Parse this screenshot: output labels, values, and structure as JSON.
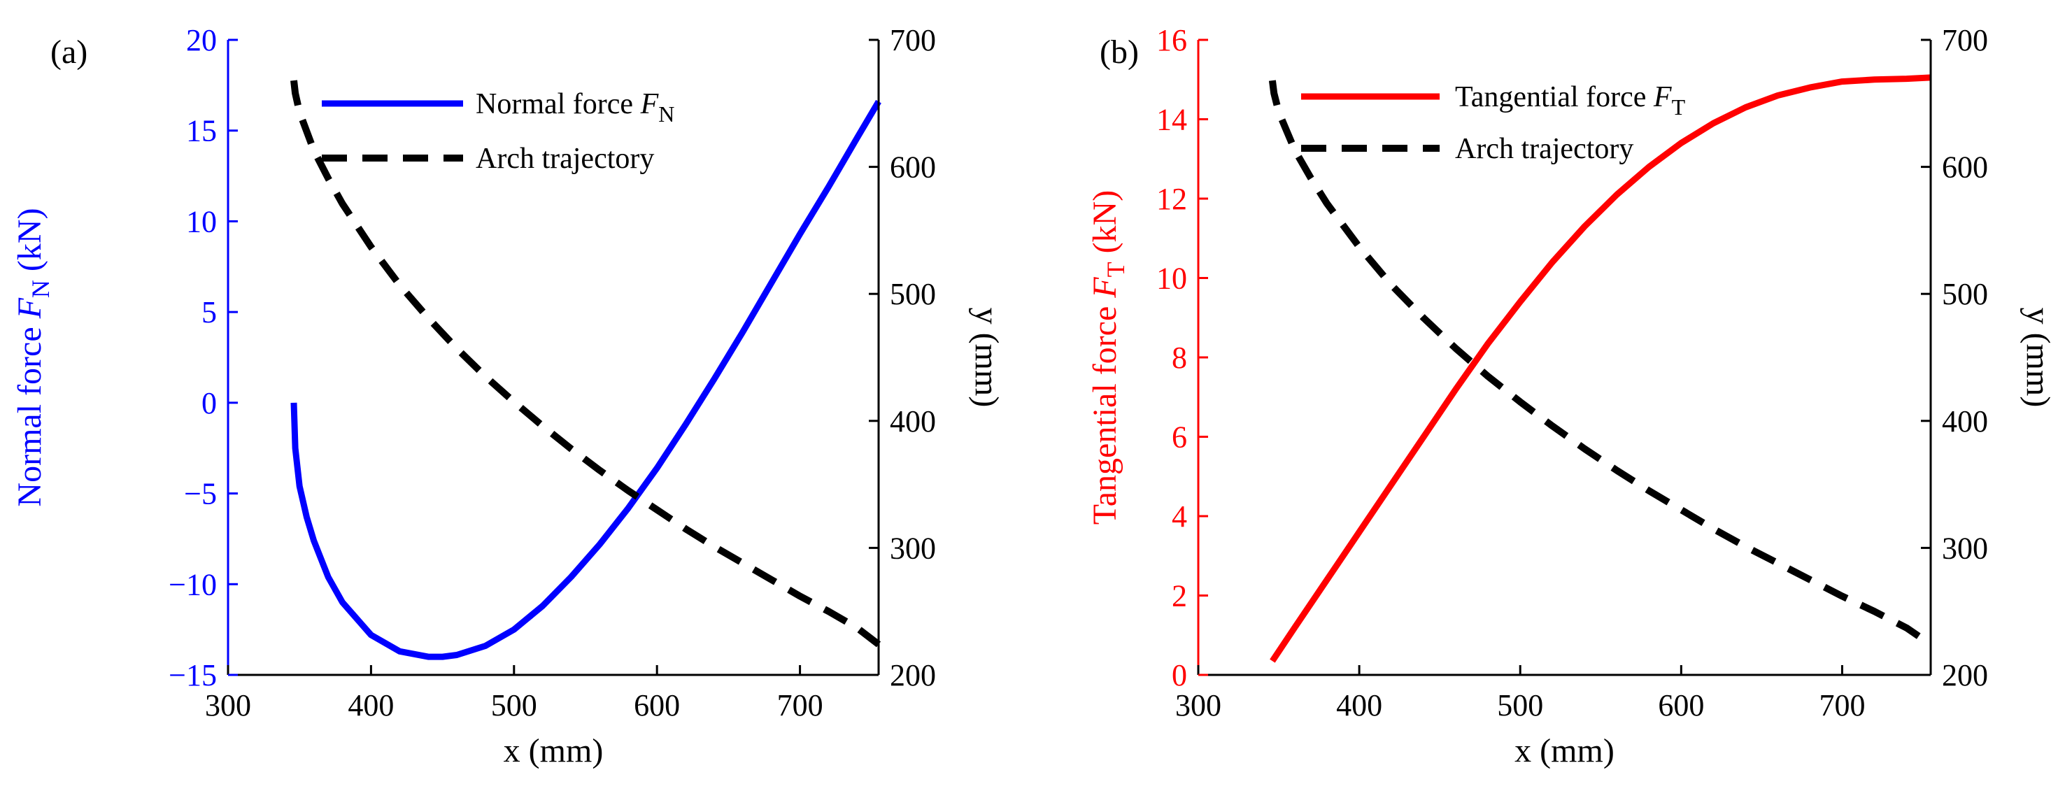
{
  "colors": {
    "normal": "#0000ff",
    "tangential": "#ff0000",
    "arch": "#000000"
  },
  "chart_data": [
    {
      "panel_label": "(a)",
      "type": "line",
      "xlabel": "x (mm)",
      "xlim": [
        300,
        755
      ],
      "xticks": [
        300,
        400,
        500,
        600,
        700
      ],
      "left_axis": {
        "label_main": "Normal force ",
        "label_symbol": "F",
        "label_sub": "N",
        "label_unit": " (kN)",
        "lim": [
          -15,
          20
        ],
        "ticks": [
          -15,
          -10,
          -5,
          0,
          5,
          10,
          15,
          20
        ],
        "tick_labels": [
          "−15",
          "−10",
          "−5",
          "0",
          "5",
          "10",
          "15",
          "20"
        ],
        "color": "#0000ff"
      },
      "right_axis": {
        "label": "y (mm)",
        "lim": [
          200,
          700
        ],
        "ticks": [
          200,
          300,
          400,
          500,
          600,
          700
        ],
        "color": "#000000"
      },
      "legend": [
        {
          "name": "Normal force ",
          "symbol": "F",
          "sub": "N",
          "style": "solid",
          "color": "#0000ff"
        },
        {
          "name": "Arch trajectory",
          "style": "dashed",
          "color": "#000000"
        }
      ],
      "series": [
        {
          "name": "Normal force F_N",
          "axis": "left",
          "style": "solid",
          "color": "#0000ff",
          "x": [
            346,
            347,
            350,
            355,
            360,
            370,
            380,
            400,
            420,
            440,
            450,
            460,
            480,
            500,
            520,
            540,
            560,
            580,
            600,
            620,
            640,
            660,
            680,
            700,
            720,
            740,
            755
          ],
          "y": [
            0,
            -2.5,
            -4.6,
            -6.3,
            -7.6,
            -9.6,
            -11.0,
            -12.8,
            -13.7,
            -14.0,
            -14.0,
            -13.9,
            -13.4,
            -12.5,
            -11.2,
            -9.6,
            -7.8,
            -5.8,
            -3.6,
            -1.2,
            1.3,
            3.9,
            6.6,
            9.3,
            11.9,
            14.6,
            16.6
          ]
        },
        {
          "name": "Arch trajectory",
          "axis": "right",
          "style": "dashed",
          "color": "#000000",
          "x": [
            346,
            347,
            350,
            355,
            360,
            370,
            380,
            400,
            420,
            440,
            460,
            480,
            500,
            520,
            540,
            560,
            580,
            600,
            620,
            640,
            660,
            680,
            700,
            720,
            740,
            755
          ],
          "y": [
            668,
            658,
            643,
            628,
            613,
            591,
            571,
            537,
            507,
            481,
            457,
            435,
            415,
            396,
            378,
            361,
            345,
            330,
            315,
            301,
            288,
            275,
            262,
            250,
            237,
            224
          ]
        }
      ]
    },
    {
      "panel_label": "(b)",
      "type": "line",
      "xlabel": "x (mm)",
      "xlim": [
        300,
        755
      ],
      "xticks": [
        300,
        400,
        500,
        600,
        700
      ],
      "left_axis": {
        "label_main": "Tangential force ",
        "label_symbol": "F",
        "label_sub": "T",
        "label_unit": " (kN)",
        "lim": [
          0,
          16
        ],
        "ticks": [
          0,
          2,
          4,
          6,
          8,
          10,
          12,
          14,
          16
        ],
        "tick_labels": [
          "0",
          "2",
          "4",
          "6",
          "8",
          "10",
          "12",
          "14",
          "16"
        ],
        "color": "#ff0000"
      },
      "right_axis": {
        "label": "y (mm)",
        "lim": [
          200,
          700
        ],
        "ticks": [
          200,
          300,
          400,
          500,
          600,
          700
        ],
        "color": "#000000"
      },
      "legend": [
        {
          "name": "Tangential force ",
          "symbol": "F",
          "sub": "T",
          "style": "solid",
          "color": "#ff0000"
        },
        {
          "name": "Arch trajectory",
          "style": "dashed",
          "color": "#000000"
        }
      ],
      "series": [
        {
          "name": "Tangential force F_T",
          "axis": "left",
          "style": "solid",
          "color": "#ff0000",
          "x": [
            346,
            360,
            380,
            400,
            420,
            440,
            460,
            480,
            500,
            520,
            540,
            560,
            580,
            600,
            620,
            640,
            660,
            680,
            700,
            720,
            740,
            755
          ],
          "y": [
            0.35,
            1.2,
            2.4,
            3.6,
            4.8,
            6.0,
            7.2,
            8.35,
            9.4,
            10.4,
            11.3,
            12.1,
            12.8,
            13.4,
            13.9,
            14.3,
            14.6,
            14.8,
            14.95,
            15.0,
            15.02,
            15.05
          ]
        },
        {
          "name": "Arch trajectory",
          "axis": "right",
          "style": "dashed",
          "color": "#000000",
          "x": [
            346,
            347,
            350,
            355,
            360,
            370,
            380,
            400,
            420,
            440,
            460,
            480,
            500,
            520,
            540,
            560,
            580,
            600,
            620,
            640,
            660,
            680,
            700,
            720,
            740,
            755
          ],
          "y": [
            668,
            658,
            643,
            628,
            613,
            591,
            571,
            537,
            507,
            481,
            457,
            435,
            415,
            396,
            378,
            361,
            345,
            330,
            315,
            301,
            288,
            275,
            262,
            250,
            237,
            224
          ]
        }
      ]
    }
  ]
}
